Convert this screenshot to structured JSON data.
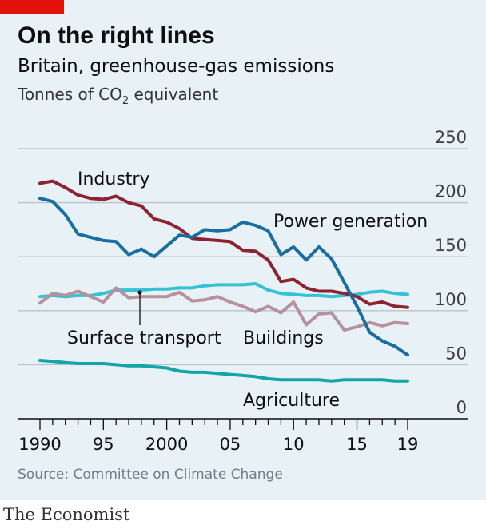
{
  "title": "On the right lines",
  "subtitle": "Britain, greenhouse-gas emissions",
  "unit_prefix": "Tonnes of CO",
  "unit_subscript": "2",
  "unit_suffix": " equivalent",
  "source": "Source: Committee on Climate Change",
  "brand": "The Economist",
  "colors": {
    "background": "#e8f1f5",
    "brand_red": "#e3120b",
    "industry": "#8c2232",
    "power_generation": "#1a6da0",
    "surface_transport": "#36c2d6",
    "buildings": "#b7919b",
    "agriculture": "#13a5a8"
  },
  "chart_data": {
    "type": "line",
    "x": [
      1990,
      1991,
      1992,
      1993,
      1994,
      1995,
      1996,
      1997,
      1998,
      1999,
      2000,
      2001,
      2002,
      2003,
      2004,
      2005,
      2006,
      2007,
      2008,
      2009,
      2010,
      2011,
      2012,
      2013,
      2014,
      2015,
      2016,
      2017,
      2018,
      2019
    ],
    "x_tick_labels": [
      {
        "value": 1990,
        "label": "1990"
      },
      {
        "value": 1995,
        "label": "95"
      },
      {
        "value": 2000,
        "label": "2000"
      },
      {
        "value": 2005,
        "label": "05"
      },
      {
        "value": 2010,
        "label": "10"
      },
      {
        "value": 2015,
        "label": "15"
      },
      {
        "value": 2019,
        "label": "19"
      }
    ],
    "y_ticks": [
      0,
      50,
      100,
      150,
      200,
      250
    ],
    "ylim": [
      0,
      250
    ],
    "grid": true,
    "series": [
      {
        "name": "Industry",
        "color_key": "industry",
        "values": [
          218,
          220,
          214,
          207,
          204,
          203,
          206,
          200,
          197,
          185,
          182,
          176,
          167,
          166,
          165,
          164,
          156,
          155,
          147,
          127,
          129,
          121,
          118,
          118,
          116,
          113,
          106,
          108,
          104,
          103
        ]
      },
      {
        "name": "Power generation",
        "color_key": "power_generation",
        "values": [
          204,
          201,
          189,
          171,
          168,
          165,
          164,
          152,
          157,
          150,
          160,
          170,
          168,
          175,
          174,
          175,
          182,
          179,
          174,
          152,
          159,
          147,
          159,
          148,
          126,
          104,
          80,
          72,
          67,
          59
        ]
      },
      {
        "name": "Surface transport",
        "color_key": "surface_transport",
        "values": [
          113,
          114,
          113,
          114,
          114,
          116,
          119,
          119,
          119,
          120,
          120,
          121,
          121,
          123,
          124,
          124,
          124,
          125,
          119,
          116,
          115,
          114,
          114,
          113,
          114,
          115,
          117,
          118,
          116,
          115
        ]
      },
      {
        "name": "Buildings",
        "color_key": "buildings",
        "values": [
          107,
          116,
          114,
          118,
          113,
          108,
          121,
          112,
          113,
          113,
          113,
          117,
          109,
          110,
          113,
          108,
          104,
          99,
          104,
          98,
          108,
          87,
          97,
          98,
          82,
          85,
          89,
          86,
          89,
          88
        ]
      },
      {
        "name": "Agriculture",
        "color_key": "agriculture",
        "values": [
          54,
          53,
          52,
          51,
          51,
          51,
          50,
          49,
          49,
          48,
          47,
          44,
          43,
          43,
          42,
          41,
          40,
          39,
          37,
          36,
          36,
          36,
          36,
          35,
          36,
          36,
          36,
          36,
          35,
          35
        ]
      }
    ],
    "annotations": [
      {
        "text": "Industry",
        "series": "Industry"
      },
      {
        "text": "Power generation",
        "series": "Power generation"
      },
      {
        "text": "Surface transport",
        "series": "Surface transport"
      },
      {
        "text": "Buildings",
        "series": "Buildings"
      },
      {
        "text": "Agriculture",
        "series": "Agriculture"
      }
    ]
  }
}
